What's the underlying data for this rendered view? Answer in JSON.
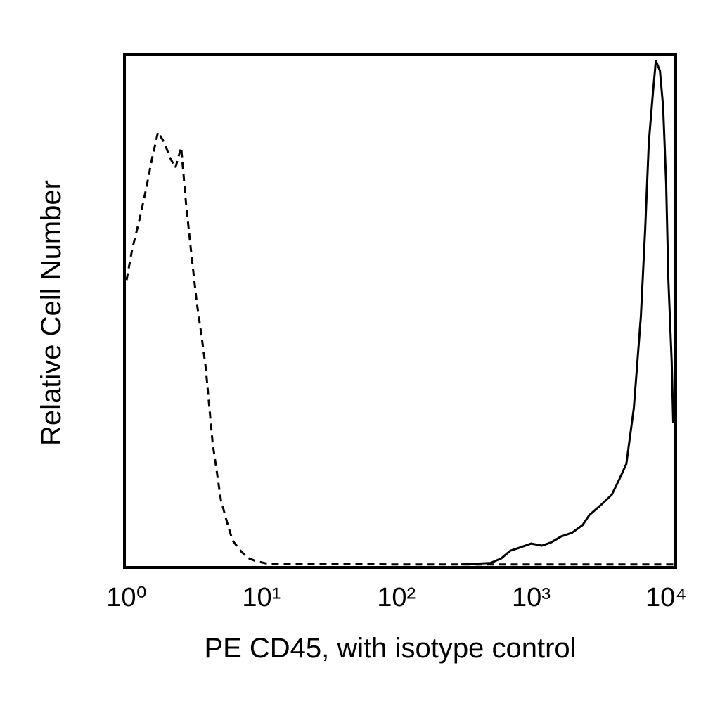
{
  "chart_data": {
    "type": "line",
    "x_label": "PE CD45, with isotype control",
    "y_label": "Relative Cell Number",
    "log_x": true,
    "grid": false,
    "xlim": [
      1,
      11500
    ],
    "ylim": [
      0,
      100
    ],
    "xticks": [
      {
        "value": 1,
        "label": "10⁰"
      },
      {
        "value": 10,
        "label": "10¹"
      },
      {
        "value": 100,
        "label": "10²"
      },
      {
        "value": 1000,
        "label": "10³"
      },
      {
        "value": 10000,
        "label": "10⁴"
      }
    ],
    "series": [
      {
        "color": "#000000",
        "dash": "dashed",
        "x": [
          1,
          1.1,
          1.25,
          1.4,
          1.55,
          1.71,
          1.9,
          2.1,
          2.3,
          2.54,
          2.76,
          3.0,
          3.3,
          3.6,
          3.86,
          4.35,
          5.0,
          5.5,
          6.1,
          7.0,
          7.9,
          9,
          10.9,
          20,
          50,
          100,
          300,
          1000,
          3000,
          10000,
          11300
        ],
        "values": [
          56,
          62,
          68,
          74,
          80,
          85,
          83,
          80,
          78,
          82,
          71,
          62,
          52,
          45,
          39,
          24,
          13,
          9,
          5,
          3,
          1.6,
          1,
          0.5,
          0.4,
          0.4,
          0.3,
          0.3,
          0.3,
          0.3,
          0.3,
          0.3
        ]
      },
      {
        "color": "#000000",
        "dash": "solid",
        "x": [
          300,
          500,
          600,
          700,
          800,
          1000,
          1200,
          1400,
          1670,
          2000,
          2400,
          2700,
          3300,
          3960,
          4500,
          5070,
          5770,
          6500,
          7000,
          7450,
          8000,
          8400,
          9000,
          9500,
          10000,
          10400,
          11000,
          11300
        ],
        "values": [
          0.3,
          0.6,
          1.5,
          3,
          3.5,
          4.4,
          4,
          4.6,
          5.8,
          6.5,
          8,
          10,
          12,
          14,
          17,
          20,
          31,
          49,
          66,
          83,
          93,
          99,
          97,
          90,
          75,
          56,
          40,
          28
        ]
      }
    ]
  }
}
